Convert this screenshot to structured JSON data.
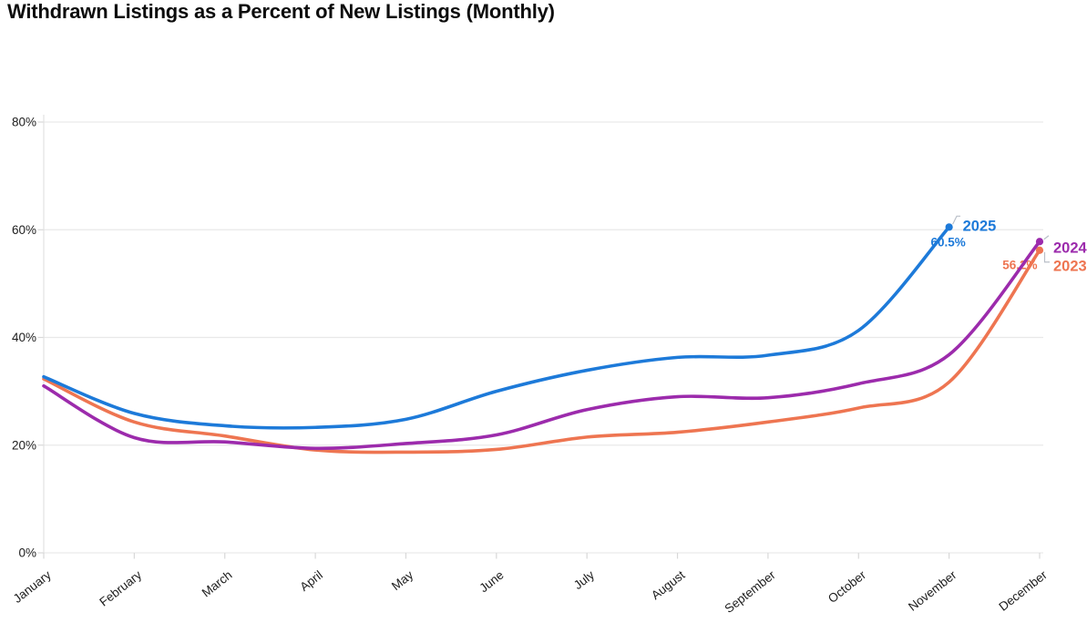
{
  "page": {
    "title": "Withdrawn Listings as a Percent of New Listings (Monthly)"
  },
  "chart_data": {
    "type": "line",
    "title": "Withdrawn Listings as a Percent of New Listings (Monthly)",
    "xlabel": "",
    "ylabel": "",
    "x_categories": [
      "January",
      "February",
      "March",
      "April",
      "May",
      "June",
      "July",
      "August",
      "September",
      "October",
      "November",
      "December"
    ],
    "y_ticks": [
      0,
      20,
      40,
      60,
      80
    ],
    "y_tick_suffix": "%",
    "ylim": [
      0,
      85
    ],
    "grid": "horizontal",
    "legend_position": "line-end-labels",
    "colors": {
      "grid": "#e9e9e9",
      "axis": "#e2e2e2",
      "tick": "#d8d8d8",
      "leader": "#b9bfc8",
      "axis_text": "#1c1c1c"
    },
    "series": [
      {
        "name": "2025",
        "color": "#1d7ad9",
        "end_label": "2025",
        "end_value_label": "60.5%",
        "values": [
          32.7,
          25.9,
          23.6,
          23.3,
          24.8,
          30.0,
          33.9,
          36.3,
          36.7,
          41.3,
          60.5,
          null
        ]
      },
      {
        "name": "2024",
        "color": "#9c2bac",
        "end_label": "2024",
        "end_value_label": null,
        "values": [
          31.0,
          21.4,
          20.6,
          19.4,
          20.3,
          21.9,
          26.6,
          29.0,
          28.8,
          31.4,
          36.8,
          57.8
        ]
      },
      {
        "name": "2023",
        "color": "#ee7551",
        "end_label": "2023",
        "end_value_label": "56.2%",
        "values": [
          32.3,
          24.3,
          21.7,
          19.1,
          18.7,
          19.2,
          21.5,
          22.4,
          24.3,
          26.9,
          31.7,
          56.2
        ]
      }
    ]
  }
}
